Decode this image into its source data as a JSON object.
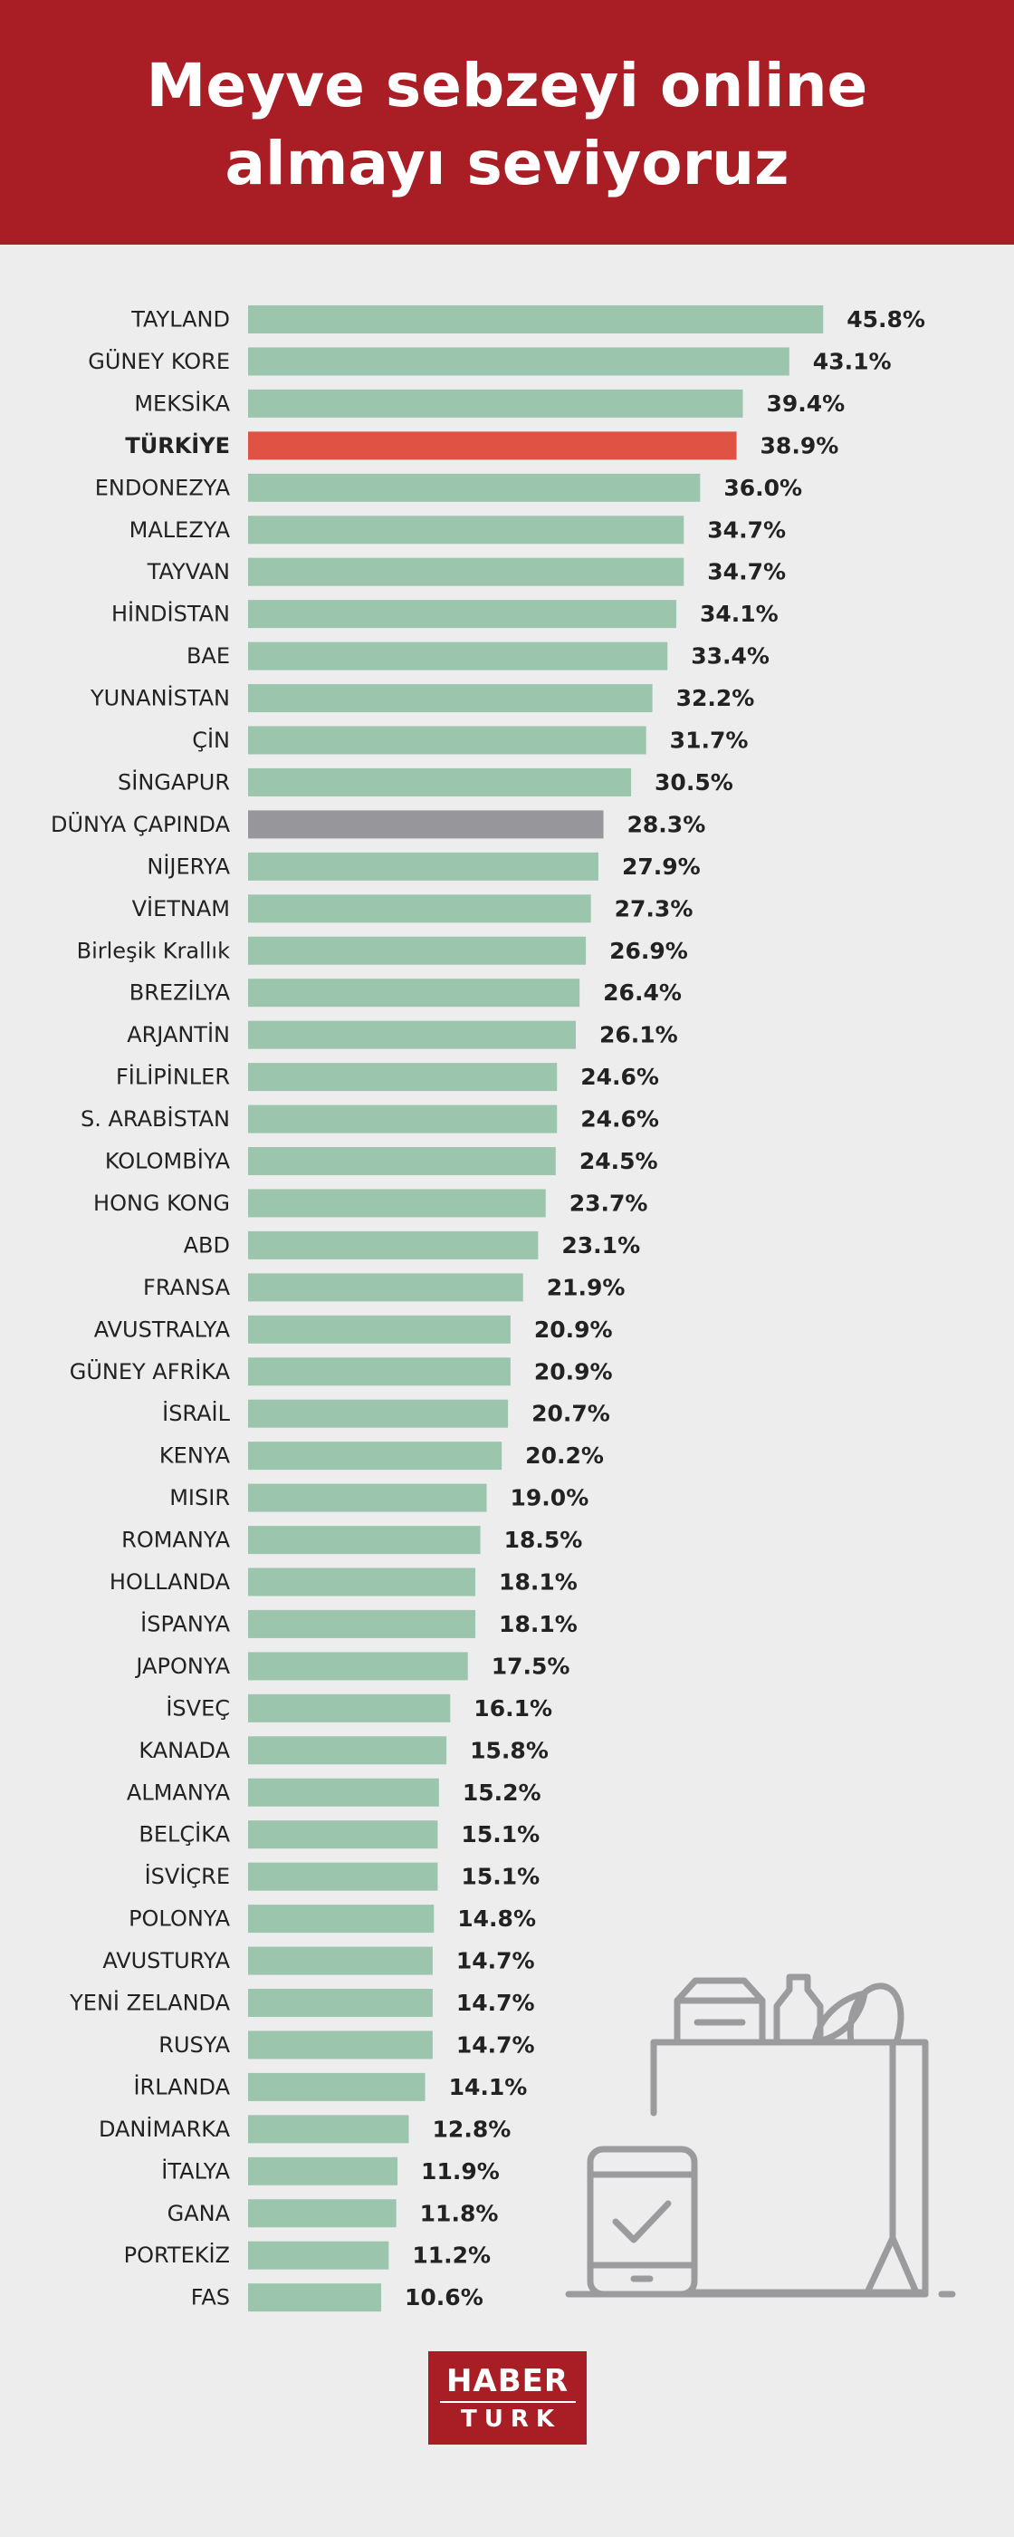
{
  "title": "Meyve sebzeyi online almayı seviyoruz",
  "logo": {
    "line1": "HABER",
    "line2": "TURK"
  },
  "colors": {
    "bar": "#9cc5ae",
    "highlight": "#e05243",
    "world": "#97979b",
    "header": "#a81e24",
    "icon": "#9b9b9d",
    "text": "#222222"
  },
  "icon": "shopping-bag-with-phone-checkmark-icon",
  "chart_data": {
    "type": "bar",
    "orientation": "horizontal",
    "title": "Meyve sebzeyi online almayı seviyoruz",
    "xlabel": "",
    "ylabel": "",
    "value_suffix": "%",
    "xlim": [
      0,
      50
    ],
    "grid": false,
    "legend": "none",
    "highlight_category": "TÜRKİYE",
    "world_category": "DÜNYA ÇAPINDA",
    "categories": [
      "TAYLAND",
      "GÜNEY KORE",
      "MEKSİKA",
      "TÜRKİYE",
      "ENDONEZYA",
      "MALEZYA",
      "TAYVAN",
      "HİNDİSTAN",
      "BAE",
      "YUNANİSTAN",
      "ÇİN",
      "SİNGAPUR",
      "DÜNYA ÇAPINDA",
      "NİJERYA",
      "VİETNAM",
      "Birleşik Krallık",
      "BREZİLYA",
      "ARJANTİN",
      "FİLİPİNLER",
      "S. ARABİSTAN",
      "KOLOMBİYA",
      "HONG KONG",
      "ABD",
      "FRANSA",
      "AVUSTRALYA",
      "GÜNEY AFRİKA",
      "İSRAİL",
      "KENYA",
      "MISIR",
      "ROMANYA",
      "HOLLANDA",
      "İSPANYA",
      "JAPONYA",
      "İSVEÇ",
      "KANADA",
      "ALMANYA",
      "BELÇİKA",
      "İSVİÇRE",
      "POLONYA",
      "AVUSTURYA",
      "YENİ ZELANDA",
      "RUSYA",
      "İRLANDA",
      "DANİMARKA",
      "İTALYA",
      "GANA",
      "PORTEKİZ",
      "FAS"
    ],
    "values": [
      45.8,
      43.1,
      39.4,
      38.9,
      36.0,
      34.7,
      34.7,
      34.1,
      33.4,
      32.2,
      31.7,
      30.5,
      28.3,
      27.9,
      27.3,
      26.9,
      26.4,
      26.1,
      24.6,
      24.6,
      24.5,
      23.7,
      23.1,
      21.9,
      20.9,
      20.9,
      20.7,
      20.2,
      19.0,
      18.5,
      18.1,
      18.1,
      17.5,
      16.1,
      15.8,
      15.2,
      15.1,
      15.1,
      14.8,
      14.7,
      14.7,
      14.7,
      14.1,
      12.8,
      11.9,
      11.8,
      11.2,
      10.6
    ],
    "value_labels": [
      "45.8%",
      "43.1%",
      "39.4%",
      "38.9%",
      "36.0%",
      "34.7%",
      "34.7%",
      "34.1%",
      "33.4%",
      "32.2%",
      "31.7%",
      "30.5%",
      "28.3%",
      "27.9%",
      "27.3%",
      "26.9%",
      "26.4%",
      "26.1%",
      "24.6%",
      "24.6%",
      "24.5%",
      "23.7%",
      "23.1%",
      "21.9%",
      "20.9%",
      "20.9%",
      "20.7%",
      "20.2%",
      "19.0%",
      "18.5%",
      "18.1%",
      "18.1%",
      "17.5%",
      "16.1%",
      "15.8%",
      "15.2%",
      "15.1%",
      "15.1%",
      "14.8%",
      "14.7%",
      "14.7%",
      "14.7%",
      "14.1%",
      "12.8%",
      "11.9%",
      "11.8%",
      "11.2%",
      "10.6%"
    ]
  }
}
